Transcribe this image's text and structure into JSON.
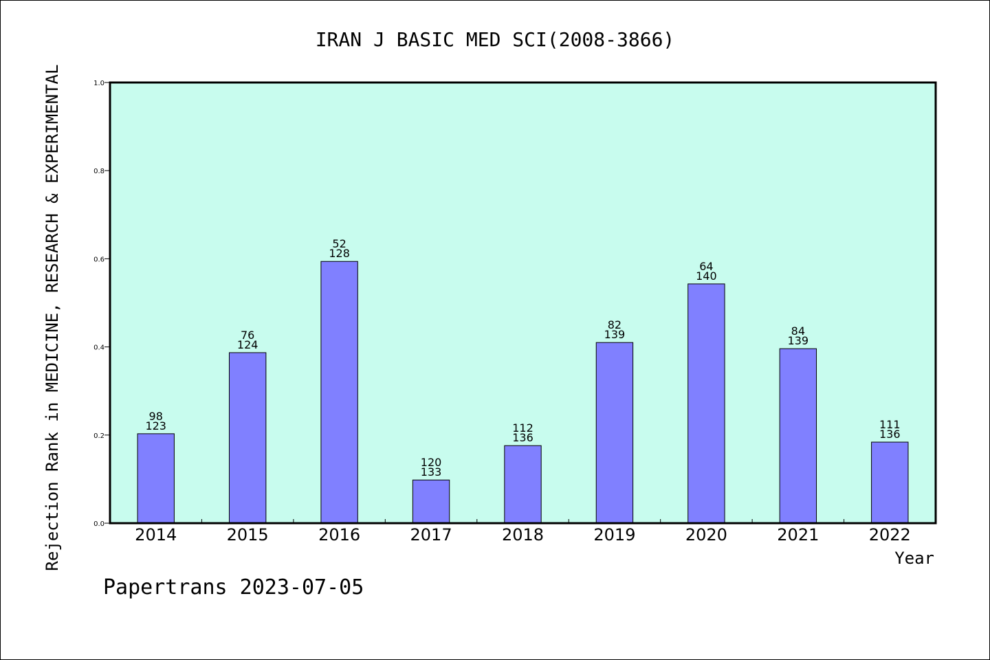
{
  "chart_data": {
    "type": "bar",
    "title": "IRAN J BASIC MED SCI(2008-3866)",
    "xlabel": "Year",
    "ylabel": "Rejection Rank in MEDICINE, RESEARCH & EXPERIMENTAL",
    "ylim": [
      0,
      1.0
    ],
    "yticks": [
      "0.0",
      "0.2",
      "0.4",
      "0.6",
      "0.8",
      "1.0"
    ],
    "categories": [
      "2014",
      "2015",
      "2016",
      "2017",
      "2018",
      "2019",
      "2020",
      "2021",
      "2022"
    ],
    "values": [
      0.203,
      0.387,
      0.594,
      0.098,
      0.176,
      0.41,
      0.543,
      0.396,
      0.184
    ],
    "rank": [
      98,
      76,
      52,
      120,
      112,
      82,
      64,
      84,
      111
    ],
    "total": [
      123,
      124,
      128,
      133,
      136,
      139,
      140,
      139,
      136
    ],
    "grid": false,
    "legend": "none",
    "colors": {
      "plot_background": "#c8fcee",
      "bar_fill": "#8080ff",
      "bar_stroke": "#000000"
    }
  },
  "footer": {
    "credit": "Papertrans 2023-07-05"
  }
}
